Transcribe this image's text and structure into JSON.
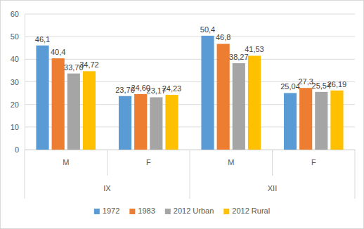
{
  "chart_data": {
    "type": "bar",
    "categories": [
      "M",
      "F",
      "M",
      "F"
    ],
    "category_groups": [
      "IX",
      "IX",
      "XII",
      "XII"
    ],
    "series": [
      {
        "name": "1972",
        "color": "#5b9bd5",
        "values": [
          46.1,
          23.7,
          50.4,
          25.04
        ],
        "value_labels": [
          "46,1",
          "23,70",
          "50,4",
          "25,04"
        ]
      },
      {
        "name": "1983",
        "color": "#ed7d31",
        "values": [
          40.4,
          24.6,
          46.8,
          27.3
        ],
        "value_labels": [
          "40,4",
          "24,60",
          "46,8",
          "27,3"
        ]
      },
      {
        "name": "2012 Urban",
        "color": "#a5a5a5",
        "values": [
          33.7,
          23.17,
          38.27,
          25.54
        ],
        "value_labels": [
          "33,70",
          "23,17",
          "38,27",
          "25,54"
        ]
      },
      {
        "name": "2012 Rural",
        "color": "#ffc000",
        "values": [
          34.72,
          24.23,
          41.53,
          26.19
        ],
        "value_labels": [
          "34,72",
          "24,23",
          "41,53",
          "26,19"
        ]
      }
    ],
    "ylim": [
      0,
      60
    ],
    "yticks": [
      0,
      10,
      20,
      30,
      40,
      50,
      60
    ],
    "grid": true,
    "legend": "bottom",
    "data_labels": true
  }
}
